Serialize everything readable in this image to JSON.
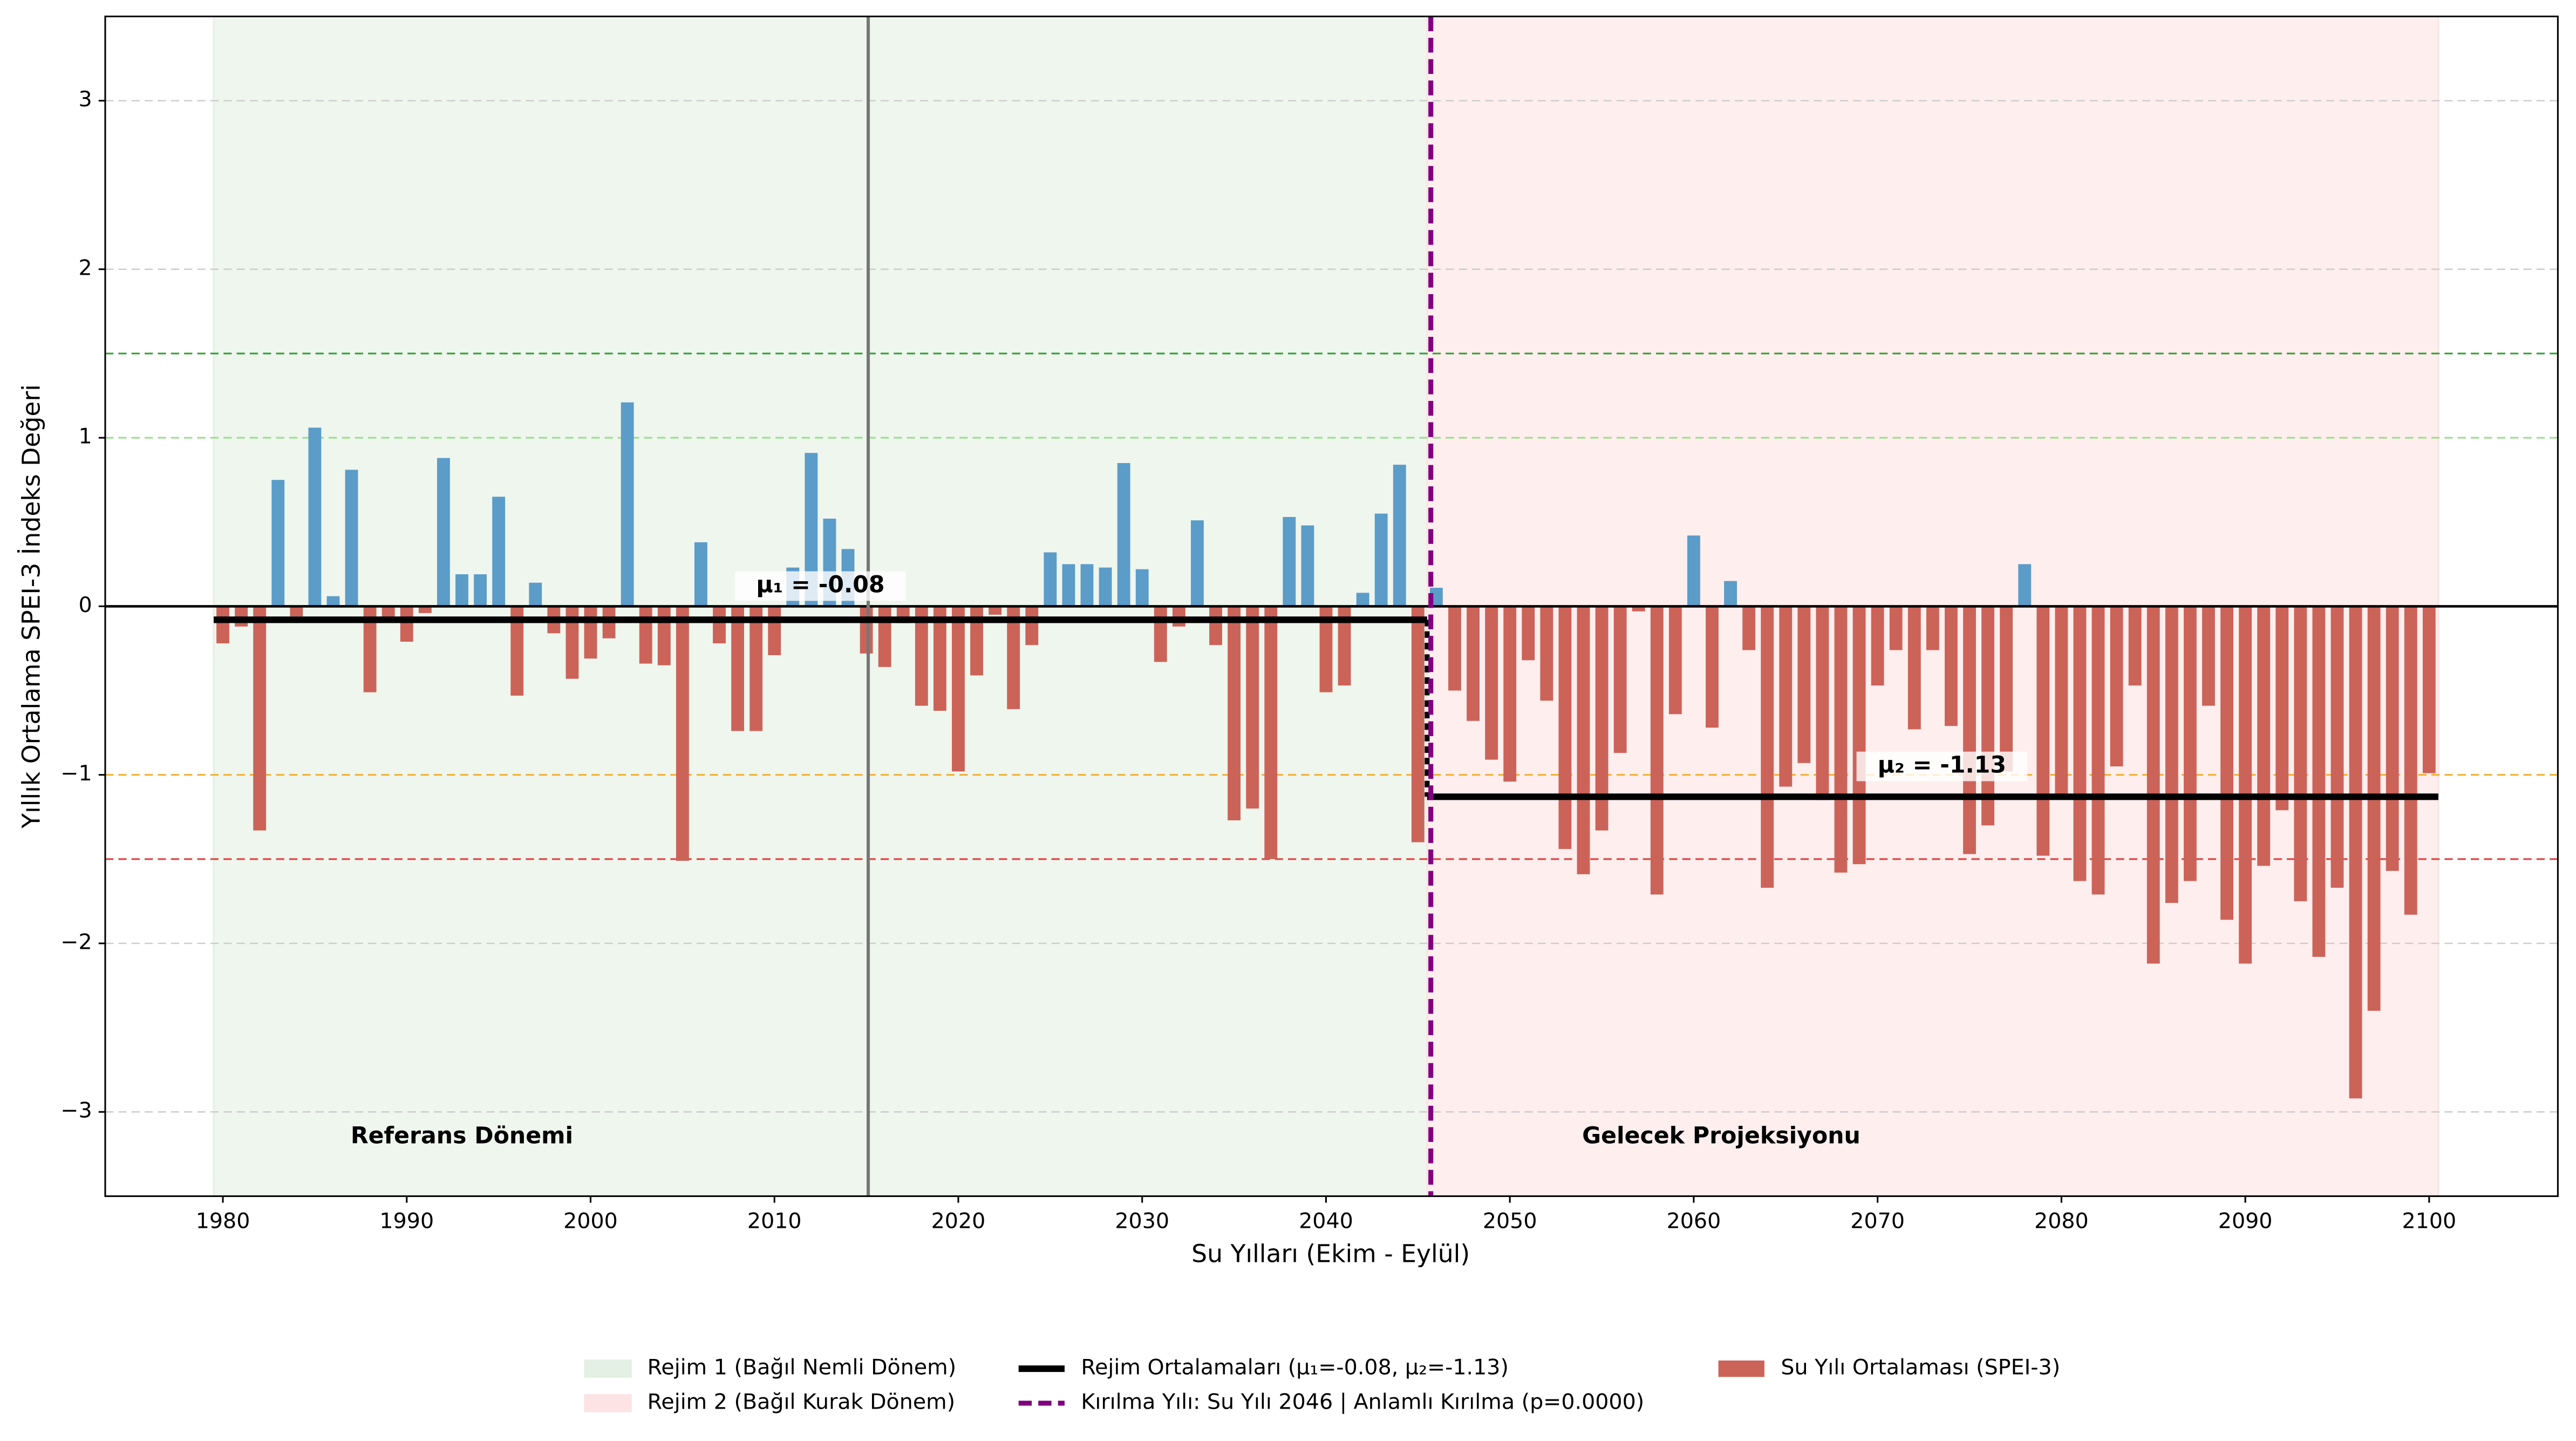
{
  "chart_data": {
    "type": "bar",
    "xlabel": "Su Yılları (Ekim - Eylül)",
    "ylabel": "Yıllık Ortalama SPEI-3 İndeks Değeri",
    "x": [
      1980,
      1981,
      1982,
      1983,
      1984,
      1985,
      1986,
      1987,
      1988,
      1989,
      1990,
      1991,
      1992,
      1993,
      1994,
      1995,
      1996,
      1997,
      1998,
      1999,
      2000,
      2001,
      2002,
      2003,
      2004,
      2005,
      2006,
      2007,
      2008,
      2009,
      2010,
      2011,
      2012,
      2013,
      2014,
      2015,
      2016,
      2017,
      2018,
      2019,
      2020,
      2021,
      2022,
      2023,
      2024,
      2025,
      2026,
      2027,
      2028,
      2029,
      2030,
      2031,
      2032,
      2033,
      2034,
      2035,
      2036,
      2037,
      2038,
      2039,
      2040,
      2041,
      2042,
      2043,
      2044,
      2045,
      2046,
      2047,
      2048,
      2049,
      2050,
      2051,
      2052,
      2053,
      2054,
      2055,
      2056,
      2057,
      2058,
      2059,
      2060,
      2061,
      2062,
      2063,
      2064,
      2065,
      2066,
      2067,
      2068,
      2069,
      2070,
      2071,
      2072,
      2073,
      2074,
      2075,
      2076,
      2077,
      2078,
      2079,
      2080,
      2081,
      2082,
      2083,
      2084,
      2085,
      2086,
      2087,
      2088,
      2089,
      2090,
      2091,
      2092,
      2093,
      2094,
      2095,
      2096,
      2097,
      2098,
      2099,
      2100
    ],
    "values": [
      -0.22,
      -0.12,
      -1.33,
      0.75,
      -0.06,
      1.06,
      0.06,
      0.81,
      -0.51,
      -0.08,
      -0.21,
      -0.04,
      0.88,
      0.19,
      0.19,
      0.65,
      -0.53,
      0.14,
      -0.16,
      -0.43,
      -0.31,
      -0.19,
      1.21,
      -0.34,
      -0.35,
      -1.51,
      0.38,
      -0.22,
      -0.74,
      -0.74,
      -0.29,
      0.23,
      0.91,
      0.52,
      0.34,
      -0.28,
      -0.36,
      -0.1,
      -0.59,
      -0.62,
      -0.98,
      -0.41,
      -0.05,
      -0.61,
      -0.23,
      0.32,
      0.25,
      0.25,
      0.23,
      0.85,
      0.22,
      -0.33,
      -0.12,
      0.51,
      -0.23,
      -1.27,
      -1.2,
      -1.5,
      0.53,
      0.48,
      -0.51,
      -0.47,
      0.08,
      0.55,
      0.84,
      -1.4,
      0.11,
      -0.5,
      -0.68,
      -0.91,
      -1.04,
      -0.32,
      -0.56,
      -1.44,
      -1.59,
      -1.33,
      -0.87,
      -0.03,
      -1.71,
      -0.64,
      0.42,
      -0.72,
      0.15,
      -0.26,
      -1.67,
      -1.07,
      -0.93,
      -1.15,
      -1.58,
      -1.53,
      -0.47,
      -0.26,
      -0.73,
      -0.26,
      -0.71,
      -1.47,
      -1.3,
      -0.98,
      0.25,
      -1.48,
      -1.14,
      -1.63,
      -1.71,
      -0.95,
      -0.47,
      -2.12,
      -1.76,
      -1.63,
      -0.59,
      -1.86,
      -2.12,
      -1.54,
      -1.21,
      -1.75,
      -2.08,
      -1.67,
      -2.92,
      -2.4,
      -1.57,
      -1.83,
      -0.99
    ],
    "colors": {
      "positive": "#5b9cc9",
      "negative": "#cc6359"
    },
    "series_name": "Su Yılı Ortalaması (SPEI-3)",
    "xlim": [
      1973.6,
      2107
    ],
    "ylim": [
      -3.5,
      3.5
    ],
    "xticks": [
      1980,
      1990,
      2000,
      2010,
      2020,
      2030,
      2040,
      2050,
      2060,
      2070,
      2080,
      2090,
      2100
    ],
    "yticks": [
      {
        "value": -3,
        "label": "−3"
      },
      {
        "value": -2,
        "label": "−2"
      },
      {
        "value": -1,
        "label": "−1"
      },
      0,
      1,
      2,
      3
    ],
    "grid": true,
    "regimes": [
      {
        "name": "Rejim 1 (Bağıl Nemli Dönem)",
        "start": 1979.5,
        "end": 2045.5,
        "color": "#e3f0e3",
        "mean": -0.08,
        "mean_label": "μ₁ = -0.08",
        "region_label": "Referans Dönemi",
        "region_label_color": "#808080"
      },
      {
        "name": "Rejim 2 (Bağıl Kurak Dönem)",
        "start": 2045.5,
        "end": 2100.5,
        "color": "#fde3e3",
        "mean": -1.13,
        "mean_label": "μ₂ = -1.13",
        "region_label": "Gelecek Projeksiyonu",
        "region_label_color": "#000000"
      }
    ],
    "mean_legend": "Rejim Ortalamaları (μ₁=-0.08, μ₂=-1.13)",
    "break": {
      "x": 2045.7,
      "color": "#800080",
      "label": "Kırılma Yılı: Su Yılı 2046 | Anlamlı Kırılma (p=0.0000)"
    },
    "reference_vline": {
      "x": 2015.1,
      "color": "#777777"
    },
    "hlines": [
      {
        "y": 1.5,
        "color": "#2ca02c"
      },
      {
        "y": 1.0,
        "color": "#98df8a"
      },
      {
        "y": -1.0,
        "color": "#f0b030"
      },
      {
        "y": -1.5,
        "color": "#e04040"
      }
    ]
  }
}
